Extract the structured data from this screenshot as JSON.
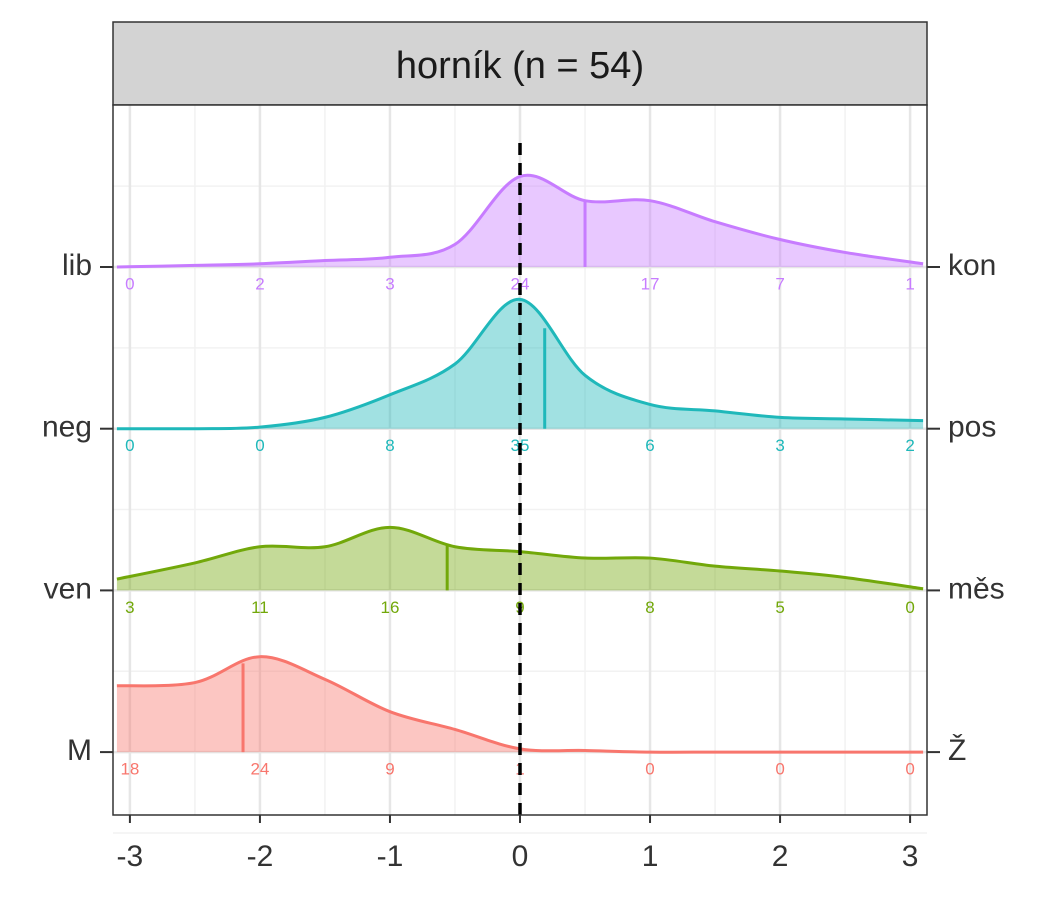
{
  "chart_data": {
    "type": "ridgeline",
    "title": "horník (n = 54)",
    "xlim": [
      -3.13,
      3.13
    ],
    "xticks": [
      -3,
      -2,
      -1,
      0,
      1,
      2,
      3
    ],
    "minor_xticks": [
      -2.5,
      -1.5,
      -0.5,
      0.5,
      1.5,
      2.5
    ],
    "grid": true,
    "vline": 0,
    "x": [
      -3.1,
      -2.5,
      -2,
      -1.5,
      -1,
      -0.5,
      0,
      0.5,
      1,
      1.5,
      2,
      2.5,
      3.1
    ],
    "count_x": [
      -3,
      -2,
      -1,
      0,
      1,
      2,
      3
    ],
    "series": [
      {
        "name": "lib",
        "name_right": "kon",
        "color": "#c77cff",
        "median": 0.5,
        "values": [
          0,
          0.01,
          0.02,
          0.04,
          0.06,
          0.14,
          0.56,
          0.41,
          0.41,
          0.28,
          0.17,
          0.09,
          0.02
        ],
        "counts": [
          0,
          2,
          3,
          24,
          17,
          7,
          1
        ]
      },
      {
        "name": "neg",
        "name_right": "pos",
        "color": "#1fb8ba",
        "median": 0.19,
        "values": [
          0,
          0,
          0.01,
          0.07,
          0.21,
          0.4,
          0.8,
          0.33,
          0.15,
          0.11,
          0.07,
          0.06,
          0.05
        ],
        "counts": [
          0,
          0,
          8,
          35,
          6,
          3,
          2
        ]
      },
      {
        "name": "ven",
        "name_right": "měs",
        "color": "#72a80a",
        "median": -0.56,
        "values": [
          0.07,
          0.17,
          0.27,
          0.27,
          0.39,
          0.27,
          0.24,
          0.2,
          0.2,
          0.15,
          0.12,
          0.08,
          0.01
        ],
        "counts": [
          3,
          11,
          16,
          9,
          8,
          5,
          0
        ]
      },
      {
        "name": "M",
        "name_right": "Ž",
        "color": "#f8766d",
        "median": -2.13,
        "values": [
          0.41,
          0.43,
          0.59,
          0.45,
          0.25,
          0.14,
          0.02,
          0.01,
          0,
          0,
          0,
          0,
          0
        ],
        "counts": [
          18,
          24,
          9,
          1,
          0,
          0,
          0
        ]
      }
    ]
  }
}
